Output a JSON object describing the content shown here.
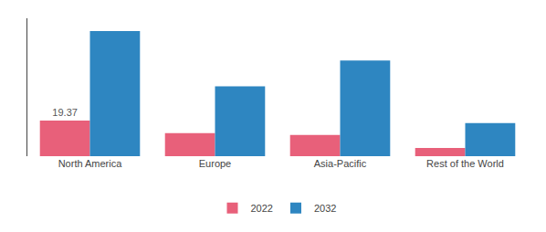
{
  "chart_data": {
    "type": "bar",
    "categories": [
      "North America",
      "Europe",
      "Asia-Pacific",
      "Rest of the World"
    ],
    "series": [
      {
        "name": "2022",
        "color": "#e8607a",
        "values": [
          19.37,
          12.5,
          11.5,
          4.5
        ]
      },
      {
        "name": "2032",
        "color": "#2e86c1",
        "values": [
          68.0,
          38.0,
          52.0,
          18.0
        ]
      }
    ],
    "annotations": [
      {
        "text": "19.37",
        "category": "North America",
        "series": "2022"
      }
    ],
    "ylim": [
      0,
      75
    ],
    "grid": false,
    "legend": "bottom",
    "tick_labels": "x"
  }
}
